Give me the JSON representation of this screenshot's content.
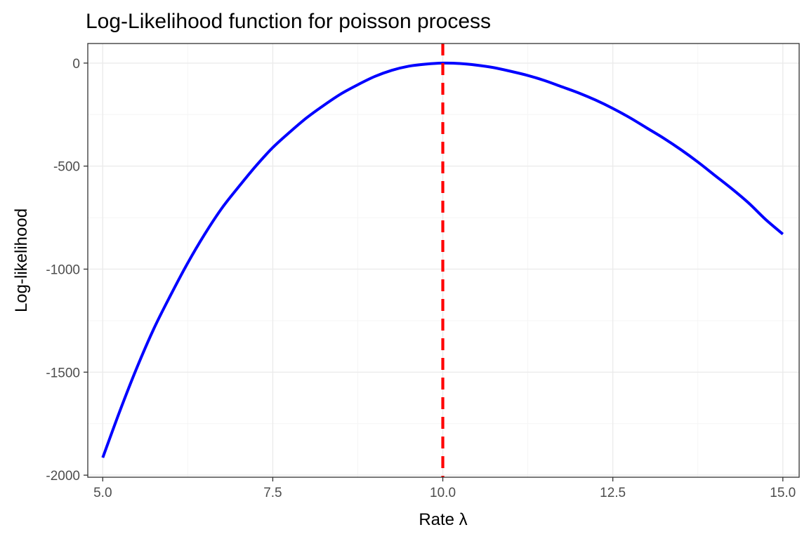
{
  "chart_data": {
    "type": "line",
    "title": "Log-Likelihood function for poisson process",
    "xlabel": "Rate λ",
    "ylabel": "Log-likelihood",
    "xlim": [
      4.78,
      15.24
    ],
    "ylim": [
      -2010,
      95
    ],
    "x_ticks": [
      5.0,
      7.5,
      10.0,
      12.5,
      15.0
    ],
    "x_tick_labels": [
      "5.0",
      "7.5",
      "10.0",
      "12.5",
      "15.0"
    ],
    "x_minor_ticks": [
      6.25,
      8.75,
      11.25,
      13.75
    ],
    "y_ticks": [
      0,
      -500,
      -1000,
      -1500,
      -2000
    ],
    "y_tick_labels": [
      "0",
      "-500",
      "-1000",
      "-1500",
      "-2000"
    ],
    "y_minor_ticks": [
      -250,
      -750,
      -1250,
      -1750
    ],
    "grid": true,
    "series": [
      {
        "color": "#0000ff",
        "x": [
          5.0,
          5.25,
          5.5,
          5.75,
          6.0,
          6.25,
          6.5,
          6.75,
          7.0,
          7.25,
          7.5,
          7.75,
          8.0,
          8.25,
          8.5,
          8.75,
          9.0,
          9.25,
          9.5,
          9.75,
          10.0,
          10.25,
          10.5,
          10.75,
          11.0,
          11.25,
          11.5,
          11.75,
          12.0,
          12.25,
          12.5,
          12.75,
          13.0,
          13.25,
          13.5,
          13.75,
          14.0,
          14.25,
          14.5,
          14.75,
          15.0
        ],
        "y": [
          -1915,
          -1690,
          -1480,
          -1290,
          -1125,
          -970,
          -830,
          -705,
          -600,
          -500,
          -410,
          -335,
          -265,
          -205,
          -150,
          -105,
          -65,
          -35,
          -15,
          -5,
          0,
          -2,
          -10,
          -22,
          -40,
          -60,
          -85,
          -115,
          -145,
          -180,
          -220,
          -265,
          -315,
          -365,
          -420,
          -480,
          -545,
          -610,
          -680,
          -760,
          -830
        ]
      }
    ],
    "vline": {
      "x": 10.0,
      "color": "#ff0000",
      "style": "dashed"
    },
    "colors": {
      "panel_border": "#333333",
      "grid_major": "#ebebeb",
      "grid_minor": "#f5f5f5",
      "tick": "#333333"
    }
  }
}
